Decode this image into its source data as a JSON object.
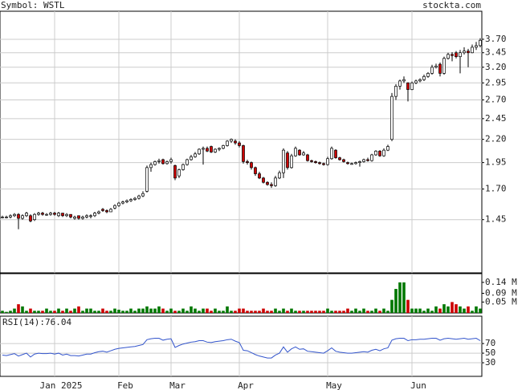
{
  "chart_data": {
    "type": "candlestick",
    "symbol_label": "Symbol: WSTL",
    "source": "stockta.com",
    "log_scale": true,
    "grid": true,
    "up_color": "#ffffff",
    "down_color": "#cc0000",
    "ylim": [
      1.1,
      4.28
    ],
    "yticks": [
      {
        "value": 3.7,
        "label": "3.70"
      },
      3.45,
      {
        "value": 3.2,
        "label": "3.20"
      },
      2.95,
      {
        "value": 2.7,
        "label": "2.70"
      },
      2.45,
      {
        "value": 2.2,
        "label": "2.20"
      },
      1.95,
      {
        "value": 1.7,
        "label": "1.70"
      },
      1.45
    ],
    "xlim": [
      -0.6,
      119.4
    ],
    "xticks": [
      {
        "value": 13,
        "label": "Jan 2025"
      },
      {
        "value": 29,
        "label": "Feb"
      },
      {
        "value": 42,
        "label": "Mar"
      },
      {
        "value": 59,
        "label": "Apr"
      },
      {
        "value": 81,
        "label": "May"
      },
      {
        "value": 102,
        "label": "Jun"
      }
    ],
    "ohlc": [
      [
        1.47,
        1.48,
        1.46,
        1.47
      ],
      [
        1.47,
        1.48,
        1.46,
        1.47
      ],
      [
        1.47,
        1.49,
        1.46,
        1.48
      ],
      [
        1.48,
        1.5,
        1.47,
        1.49
      ],
      [
        1.49,
        1.5,
        1.38,
        1.46
      ],
      [
        1.46,
        1.49,
        1.45,
        1.48
      ],
      [
        1.48,
        1.51,
        1.47,
        1.5
      ],
      [
        1.48,
        1.49,
        1.43,
        1.44
      ],
      [
        1.45,
        1.5,
        1.44,
        1.49
      ],
      [
        1.49,
        1.51,
        1.48,
        1.5
      ],
      [
        1.5,
        1.51,
        1.48,
        1.49
      ],
      [
        1.49,
        1.5,
        1.48,
        1.49
      ],
      [
        1.49,
        1.51,
        1.48,
        1.5
      ],
      [
        1.5,
        1.51,
        1.48,
        1.49
      ],
      [
        1.48,
        1.51,
        1.47,
        1.5
      ],
      [
        1.5,
        1.5,
        1.47,
        1.48
      ],
      [
        1.48,
        1.5,
        1.47,
        1.49
      ],
      [
        1.49,
        1.49,
        1.46,
        1.47
      ],
      [
        1.46,
        1.48,
        1.45,
        1.47
      ],
      [
        1.48,
        1.48,
        1.45,
        1.46
      ],
      [
        1.46,
        1.48,
        1.45,
        1.47
      ],
      [
        1.47,
        1.49,
        1.46,
        1.48
      ],
      [
        1.48,
        1.49,
        1.46,
        1.48
      ],
      [
        1.48,
        1.51,
        1.47,
        1.5
      ],
      [
        1.5,
        1.52,
        1.49,
        1.51
      ],
      [
        1.53,
        1.54,
        1.51,
        1.52
      ],
      [
        1.52,
        1.53,
        1.5,
        1.51
      ],
      [
        1.51,
        1.54,
        1.51,
        1.53
      ],
      [
        1.54,
        1.57,
        1.53,
        1.56
      ],
      [
        1.56,
        1.59,
        1.55,
        1.58
      ],
      [
        1.58,
        1.6,
        1.57,
        1.59
      ],
      [
        1.59,
        1.61,
        1.58,
        1.6
      ],
      [
        1.6,
        1.62,
        1.59,
        1.61
      ],
      [
        1.61,
        1.63,
        1.6,
        1.62
      ],
      [
        1.62,
        1.65,
        1.61,
        1.64
      ],
      [
        1.64,
        1.68,
        1.63,
        1.66
      ],
      [
        1.68,
        1.92,
        1.67,
        1.9
      ],
      [
        1.9,
        1.95,
        1.86,
        1.93
      ],
      [
        1.93,
        1.97,
        1.92,
        1.96
      ],
      [
        1.96,
        1.99,
        1.94,
        1.97
      ],
      [
        1.98,
        1.99,
        1.93,
        1.94
      ],
      [
        1.94,
        1.97,
        1.93,
        1.96
      ],
      [
        1.96,
        2.0,
        1.94,
        1.98
      ],
      [
        1.92,
        1.93,
        1.78,
        1.8
      ],
      [
        1.82,
        1.89,
        1.8,
        1.88
      ],
      [
        1.88,
        1.94,
        1.87,
        1.93
      ],
      [
        1.93,
        1.99,
        1.92,
        1.98
      ],
      [
        1.98,
        2.03,
        1.97,
        2.01
      ],
      [
        2.01,
        2.06,
        2.0,
        2.04
      ],
      [
        2.04,
        2.1,
        2.03,
        2.09
      ],
      [
        2.09,
        2.12,
        1.93,
        2.1
      ],
      [
        2.1,
        2.12,
        2.06,
        2.07
      ],
      [
        2.12,
        2.13,
        2.05,
        2.06
      ],
      [
        2.06,
        2.1,
        2.05,
        2.09
      ],
      [
        2.09,
        2.11,
        2.07,
        2.1
      ],
      [
        2.1,
        2.14,
        2.09,
        2.13
      ],
      [
        2.13,
        2.19,
        2.12,
        2.18
      ],
      [
        2.18,
        2.21,
        2.16,
        2.2
      ],
      [
        2.18,
        2.2,
        2.14,
        2.16
      ],
      [
        2.16,
        2.18,
        2.11,
        2.13
      ],
      [
        2.13,
        2.14,
        1.94,
        1.96
      ],
      [
        1.96,
        1.98,
        1.93,
        1.95
      ],
      [
        1.95,
        1.96,
        1.88,
        1.9
      ],
      [
        1.9,
        1.91,
        1.82,
        1.84
      ],
      [
        1.84,
        1.86,
        1.79,
        1.8
      ],
      [
        1.8,
        1.81,
        1.75,
        1.76
      ],
      [
        1.76,
        1.77,
        1.73,
        1.74
      ],
      [
        1.74,
        1.76,
        1.71,
        1.73
      ],
      [
        1.73,
        1.82,
        1.72,
        1.8
      ],
      [
        1.8,
        1.87,
        1.79,
        1.85
      ],
      [
        1.85,
        2.1,
        1.8,
        2.08
      ],
      [
        2.05,
        2.07,
        1.88,
        1.9
      ],
      [
        1.9,
        2.04,
        1.89,
        2.02
      ],
      [
        2.02,
        2.12,
        2.01,
        2.1
      ],
      [
        2.08,
        2.09,
        2.02,
        2.03
      ],
      [
        2.03,
        2.07,
        2.02,
        2.05
      ],
      [
        2.03,
        2.04,
        1.96,
        1.97
      ],
      [
        1.97,
        1.98,
        1.95,
        1.96
      ],
      [
        1.96,
        1.97,
        1.94,
        1.95
      ],
      [
        1.95,
        1.96,
        1.93,
        1.94
      ],
      [
        1.94,
        1.95,
        1.92,
        1.93
      ],
      [
        1.93,
        2.01,
        1.92,
        1.99
      ],
      [
        1.99,
        2.12,
        1.98,
        2.1
      ],
      [
        2.08,
        2.09,
        1.99,
        2.0
      ],
      [
        2.0,
        2.01,
        1.97,
        1.98
      ],
      [
        1.98,
        1.99,
        1.95,
        1.96
      ],
      [
        1.95,
        1.96,
        1.93,
        1.94
      ],
      [
        1.94,
        1.95,
        1.93,
        1.94
      ],
      [
        1.94,
        1.96,
        1.93,
        1.95
      ],
      [
        1.95,
        1.97,
        1.91,
        1.96
      ],
      [
        1.96,
        1.99,
        1.95,
        1.98
      ],
      [
        1.98,
        2.0,
        1.96,
        1.97
      ],
      [
        1.97,
        2.04,
        1.96,
        2.03
      ],
      [
        2.03,
        2.08,
        2.02,
        2.07
      ],
      [
        2.07,
        2.08,
        2.01,
        2.02
      ],
      [
        2.02,
        2.1,
        2.01,
        2.08
      ],
      [
        2.08,
        2.14,
        2.07,
        2.12
      ],
      [
        2.2,
        2.8,
        2.18,
        2.75
      ],
      [
        2.75,
        2.93,
        2.7,
        2.9
      ],
      [
        2.9,
        3.0,
        2.85,
        2.98
      ],
      [
        2.98,
        3.05,
        2.95,
        3.0
      ],
      [
        2.95,
        2.96,
        2.68,
        2.85
      ],
      [
        2.85,
        2.97,
        2.84,
        2.95
      ],
      [
        2.95,
        3.0,
        2.93,
        2.98
      ],
      [
        2.98,
        3.02,
        2.96,
        3.0
      ],
      [
        3.0,
        3.08,
        2.98,
        3.05
      ],
      [
        3.05,
        3.12,
        3.03,
        3.1
      ],
      [
        3.1,
        3.24,
        3.08,
        3.2
      ],
      [
        3.2,
        3.26,
        3.18,
        3.22
      ],
      [
        3.25,
        3.28,
        3.05,
        3.1
      ],
      [
        3.1,
        3.38,
        3.08,
        3.35
      ],
      [
        3.35,
        3.45,
        3.33,
        3.42
      ],
      [
        3.42,
        3.46,
        3.3,
        3.4
      ],
      [
        3.45,
        3.48,
        3.35,
        3.38
      ],
      [
        3.38,
        3.5,
        3.1,
        3.45
      ],
      [
        3.45,
        3.55,
        3.42,
        3.48
      ],
      [
        3.48,
        3.52,
        3.2,
        3.45
      ],
      [
        3.45,
        3.6,
        3.44,
        3.55
      ],
      [
        3.55,
        3.65,
        3.5,
        3.58
      ],
      [
        3.58,
        3.72,
        3.55,
        3.68
      ]
    ],
    "volume": {
      "up_color": "#007700",
      "down_color": "#cc0000",
      "ylim": [
        0,
        0.18
      ],
      "yticks": [
        {
          "value": 0.14,
          "label": "0.14 M"
        },
        {
          "value": 0.09,
          "label": "0.09 M"
        },
        {
          "value": 0.05,
          "label": "0.05 M"
        }
      ],
      "values": [
        0.01,
        0.005,
        0.01,
        0.02,
        0.04,
        0.03,
        0.01,
        0.02,
        0.01,
        0.01,
        0.01,
        0.02,
        0.01,
        0.01,
        0.02,
        0.01,
        0.02,
        0.01,
        0.02,
        0.03,
        0.01,
        0.02,
        0.02,
        0.01,
        0.01,
        0.02,
        0.01,
        0.01,
        0.02,
        0.015,
        0.01,
        0.01,
        0.02,
        0.01,
        0.02,
        0.02,
        0.03,
        0.02,
        0.02,
        0.03,
        0.02,
        0.01,
        0.02,
        0.01,
        0.01,
        0.02,
        0.01,
        0.03,
        0.02,
        0.01,
        0.02,
        0.02,
        0.01,
        0.02,
        0.01,
        0.01,
        0.03,
        0.01,
        0.01,
        0.02,
        0.02,
        0.01,
        0.01,
        0.01,
        0.01,
        0.02,
        0.01,
        0.01,
        0.02,
        0.01,
        0.02,
        0.01,
        0.02,
        0.01,
        0.01,
        0.01,
        0.01,
        0.01,
        0.01,
        0.01,
        0.01,
        0.02,
        0.01,
        0.01,
        0.01,
        0.01,
        0.02,
        0.01,
        0.02,
        0.01,
        0.02,
        0.01,
        0.01,
        0.02,
        0.01,
        0.02,
        0.01,
        0.06,
        0.11,
        0.14,
        0.14,
        0.06,
        0.02,
        0.02,
        0.02,
        0.01,
        0.02,
        0.01,
        0.03,
        0.02,
        0.04,
        0.03,
        0.05,
        0.04,
        0.03,
        0.02,
        0.03,
        0.01,
        0.03,
        0.02
      ]
    },
    "rsi": {
      "name": "RSI(14):",
      "color": "#3355cc",
      "ylim": [
        0,
        127
      ],
      "yticks": [
        70,
        50,
        30
      ],
      "values": [
        46,
        45,
        47,
        49,
        44,
        47,
        50,
        42,
        48,
        50,
        49,
        49,
        50,
        48,
        50,
        46,
        48,
        45,
        45,
        44,
        46,
        48,
        48,
        51,
        53,
        54,
        52,
        55,
        58,
        60,
        61,
        62,
        63,
        64,
        66,
        68,
        78,
        80,
        81,
        81,
        77,
        79,
        80,
        62,
        66,
        69,
        71,
        73,
        74,
        76,
        76,
        73,
        72,
        74,
        75,
        76,
        78,
        79,
        75,
        72,
        56,
        55,
        51,
        47,
        44,
        42,
        40,
        40,
        46,
        50,
        63,
        52,
        59,
        63,
        58,
        59,
        54,
        53,
        52,
        51,
        50,
        55,
        61,
        54,
        52,
        51,
        50,
        50,
        51,
        52,
        53,
        52,
        56,
        58,
        55,
        59,
        61,
        77,
        80,
        81,
        81,
        76,
        78,
        78,
        79,
        79,
        80,
        81,
        81,
        77,
        80,
        81,
        80,
        79,
        80,
        81,
        79,
        80,
        81,
        76.04
      ]
    }
  }
}
